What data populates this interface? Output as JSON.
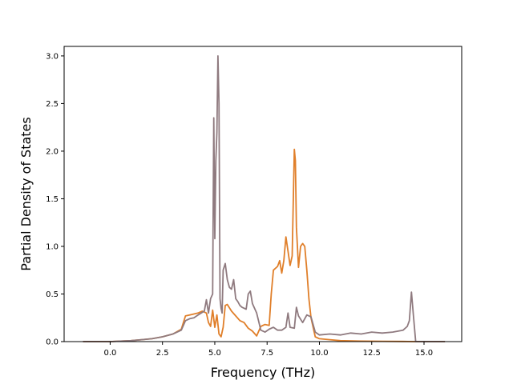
{
  "chart_data": {
    "type": "line",
    "title": "",
    "xlabel": "Frequency (THz)",
    "ylabel": "Partial Density of States",
    "xlim": [
      -2.2,
      16.8
    ],
    "ylim": [
      0.0,
      3.1
    ],
    "xticks": [
      0.0,
      2.5,
      5.0,
      7.5,
      10.0,
      12.5,
      15.0
    ],
    "xtick_labels": [
      "0.0",
      "2.5",
      "5.0",
      "7.5",
      "10.0",
      "12.5",
      "15.0"
    ],
    "yticks": [
      0.0,
      0.5,
      1.0,
      1.5,
      2.0,
      2.5,
      3.0
    ],
    "ytick_labels": [
      "0.0",
      "0.5",
      "1.0",
      "1.5",
      "2.0",
      "2.5",
      "3.0"
    ],
    "grid": false,
    "legend": "none",
    "series": [
      {
        "color": "#e07f2a",
        "x": [
          -1.3,
          0.0,
          0.5,
          1.0,
          1.5,
          2.0,
          2.5,
          3.0,
          3.4,
          3.6,
          3.8,
          4.0,
          4.2,
          4.4,
          4.6,
          4.7,
          4.8,
          4.9,
          5.0,
          5.1,
          5.2,
          5.3,
          5.4,
          5.5,
          5.6,
          5.8,
          6.0,
          6.2,
          6.4,
          6.6,
          6.8,
          7.0,
          7.2,
          7.4,
          7.6,
          7.7,
          7.8,
          8.0,
          8.1,
          8.2,
          8.3,
          8.4,
          8.5,
          8.6,
          8.7,
          8.8,
          8.85,
          8.9,
          9.0,
          9.1,
          9.2,
          9.3,
          9.4,
          9.5,
          9.6,
          9.8,
          10.0,
          10.5,
          11.0,
          12.0,
          13.0,
          14.0,
          14.5,
          16.0
        ],
        "y": [
          0.0,
          0.0,
          0.005,
          0.01,
          0.02,
          0.03,
          0.05,
          0.08,
          0.13,
          0.27,
          0.28,
          0.29,
          0.3,
          0.32,
          0.3,
          0.2,
          0.16,
          0.33,
          0.15,
          0.28,
          0.08,
          0.05,
          0.15,
          0.38,
          0.39,
          0.32,
          0.27,
          0.22,
          0.2,
          0.14,
          0.11,
          0.06,
          0.16,
          0.18,
          0.17,
          0.5,
          0.75,
          0.79,
          0.85,
          0.72,
          0.85,
          1.1,
          0.95,
          0.8,
          0.9,
          2.02,
          1.9,
          1.2,
          0.78,
          1.0,
          1.03,
          1.0,
          0.75,
          0.45,
          0.25,
          0.05,
          0.03,
          0.02,
          0.01,
          0.005,
          0.003,
          0.002,
          0.0,
          0.0
        ]
      },
      {
        "color": "#8f7a7f",
        "x": [
          -1.3,
          0.0,
          0.5,
          1.0,
          1.5,
          2.0,
          2.5,
          3.0,
          3.4,
          3.6,
          3.8,
          4.0,
          4.2,
          4.5,
          4.6,
          4.7,
          4.8,
          4.9,
          4.95,
          5.0,
          5.05,
          5.1,
          5.15,
          5.2,
          5.25,
          5.3,
          5.35,
          5.4,
          5.5,
          5.6,
          5.7,
          5.8,
          5.9,
          6.0,
          6.1,
          6.2,
          6.3,
          6.5,
          6.6,
          6.7,
          6.8,
          7.0,
          7.2,
          7.4,
          7.6,
          7.8,
          8.0,
          8.2,
          8.4,
          8.5,
          8.6,
          8.8,
          8.9,
          9.0,
          9.2,
          9.4,
          9.6,
          9.8,
          10.0,
          10.5,
          11.0,
          11.5,
          12.0,
          12.5,
          13.0,
          13.5,
          14.0,
          14.2,
          14.3,
          14.4,
          14.5,
          14.6,
          16.0
        ],
        "y": [
          0.0,
          0.0,
          0.005,
          0.01,
          0.02,
          0.03,
          0.05,
          0.08,
          0.12,
          0.22,
          0.24,
          0.25,
          0.28,
          0.32,
          0.44,
          0.3,
          0.45,
          0.5,
          2.35,
          1.08,
          1.9,
          2.2,
          3.0,
          2.5,
          0.45,
          0.35,
          0.3,
          0.75,
          0.82,
          0.65,
          0.57,
          0.55,
          0.65,
          0.45,
          0.42,
          0.38,
          0.36,
          0.34,
          0.5,
          0.53,
          0.4,
          0.3,
          0.12,
          0.1,
          0.13,
          0.15,
          0.12,
          0.12,
          0.15,
          0.3,
          0.15,
          0.14,
          0.36,
          0.27,
          0.2,
          0.28,
          0.26,
          0.1,
          0.07,
          0.08,
          0.07,
          0.09,
          0.08,
          0.1,
          0.09,
          0.1,
          0.12,
          0.16,
          0.22,
          0.52,
          0.25,
          0.0,
          0.0
        ]
      }
    ]
  }
}
